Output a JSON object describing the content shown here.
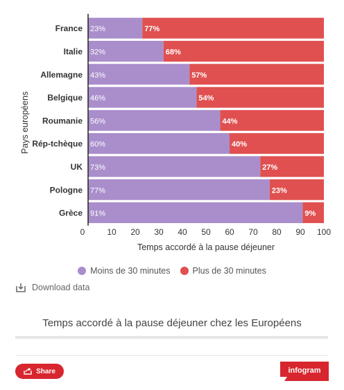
{
  "chart_data": {
    "type": "bar",
    "orientation": "horizontal",
    "stacked": true,
    "categories": [
      "France",
      "Italie",
      "Allemagne",
      "Belgique",
      "Roumanie",
      "Rép-tchèque",
      "UK",
      "Pologne",
      "Grèce"
    ],
    "series": [
      {
        "name": "Moins de 30 minutes",
        "color": "#a98ecb",
        "values": [
          23,
          32,
          43,
          46,
          56,
          60,
          73,
          77,
          91
        ],
        "labels": [
          "23%",
          "32%",
          "43%",
          "46%",
          "56%",
          "60%",
          "73%",
          "77%",
          "91%"
        ]
      },
      {
        "name": "Plus de 30 minutes",
        "color": "#e05050",
        "values": [
          77,
          68,
          57,
          54,
          44,
          40,
          27,
          23,
          9
        ],
        "labels": [
          "77%",
          "68%",
          "57%",
          "54%",
          "44%",
          "40%",
          "27%",
          "23%",
          "9%"
        ]
      }
    ],
    "xlabel": "Temps accordé à la pause déjeuner",
    "ylabel": "Pays européens",
    "xlim": [
      0,
      100
    ],
    "xticks": [
      "0",
      "10",
      "20",
      "30",
      "40",
      "50",
      "60",
      "70",
      "80",
      "90",
      "100"
    ],
    "legend_position": "bottom",
    "grid": false
  },
  "download_label": "Download data",
  "caption": "Temps accordé à la pause déjeuner chez les Européens",
  "share_label": "Share",
  "brand_label": "infogram"
}
